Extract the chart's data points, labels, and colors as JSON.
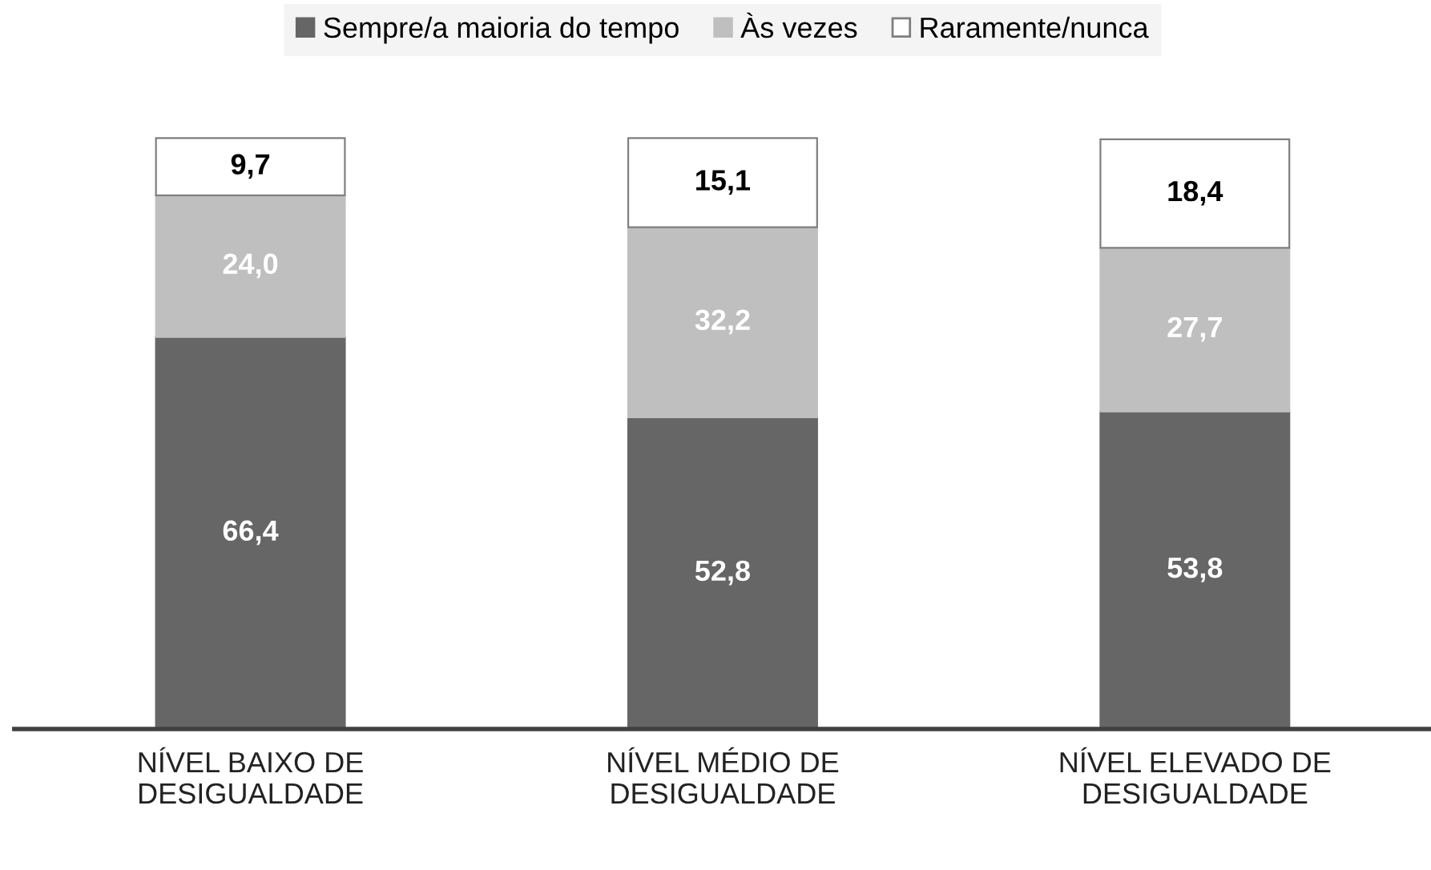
{
  "chart_data": {
    "type": "bar",
    "stacked": true,
    "categories": [
      "NÍVEL BAIXO DE\nDESIGUALDADE",
      "NÍVEL MÉDIO DE\nDESIGUALDADE",
      "NÍVEL ELEVADO DE\nDESIGUALDADE"
    ],
    "series": [
      {
        "name": "Sempre/a maioria do tempo",
        "color": "#666666",
        "values": [
          66.4,
          52.8,
          53.8
        ],
        "value_labels": [
          "66,4",
          "52,8",
          "53,8"
        ]
      },
      {
        "name": "Às vezes",
        "color": "#bfbfbf",
        "values": [
          24.0,
          32.2,
          27.7
        ],
        "value_labels": [
          "24,0",
          "32,2",
          "27,7"
        ]
      },
      {
        "name": "Raramente/nunca",
        "color": "#ffffff",
        "values": [
          9.7,
          15.1,
          18.4
        ],
        "value_labels": [
          "9,7",
          "15,1",
          "18,4"
        ]
      }
    ],
    "legend": "top",
    "grid": false
  }
}
